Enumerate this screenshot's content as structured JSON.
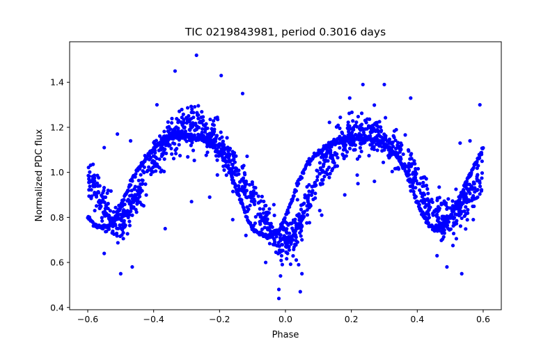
{
  "chart_data": {
    "type": "scatter",
    "title": "TIC 0219843981, period 0.3016 days",
    "xlabel": "Phase",
    "ylabel": "Normalized PDC flux",
    "xlim": [
      -0.655,
      0.655
    ],
    "ylim": [
      0.39,
      1.58
    ],
    "xticks": [
      -0.6,
      -0.4,
      -0.2,
      0.0,
      0.2,
      0.4,
      0.6
    ],
    "xtick_labels": [
      "−0.6",
      "−0.4",
      "−0.2",
      "0.0",
      "0.2",
      "0.4",
      "0.6"
    ],
    "yticks": [
      0.4,
      0.6,
      0.8,
      1.0,
      1.2,
      1.4
    ],
    "ytick_labels": [
      "0.4",
      "0.6",
      "0.8",
      "1.0",
      "1.2",
      "1.4"
    ],
    "grid": false,
    "marker_color": "#0000ff",
    "series": [
      {
        "description_source": "smooth model-like sequence (dense points)",
        "x": [
          -0.6,
          -0.58,
          -0.56,
          -0.54,
          -0.52,
          -0.5,
          -0.48,
          -0.46,
          -0.44,
          -0.42,
          -0.4,
          -0.38,
          -0.36,
          -0.34,
          -0.32,
          -0.3,
          -0.28,
          -0.26,
          -0.24,
          -0.22,
          -0.2,
          -0.18,
          -0.16,
          -0.14,
          -0.12,
          -0.1,
          -0.08,
          -0.06,
          -0.04,
          -0.02,
          0.0,
          0.02,
          0.04,
          0.06,
          0.08,
          0.1,
          0.12,
          0.14,
          0.16,
          0.18,
          0.2,
          0.22,
          0.24,
          0.26,
          0.28,
          0.3,
          0.32,
          0.34,
          0.36,
          0.38,
          0.4,
          0.42,
          0.44,
          0.46,
          0.48,
          0.5,
          0.52,
          0.54,
          0.56,
          0.58,
          0.6
        ],
        "y": [
          0.8,
          0.77,
          0.755,
          0.76,
          0.79,
          0.85,
          0.92,
          0.98,
          1.03,
          1.07,
          1.1,
          1.13,
          1.15,
          1.16,
          1.16,
          1.16,
          1.155,
          1.15,
          1.14,
          1.12,
          1.09,
          1.04,
          0.97,
          0.89,
          0.81,
          0.75,
          0.73,
          0.72,
          0.72,
          0.74,
          0.8,
          0.88,
          0.96,
          1.02,
          1.06,
          1.09,
          1.11,
          1.13,
          1.14,
          1.15,
          1.155,
          1.155,
          1.15,
          1.15,
          1.14,
          1.12,
          1.1,
          1.07,
          1.02,
          0.95,
          0.87,
          0.8,
          0.76,
          0.75,
          0.76,
          0.8,
          0.86,
          0.93,
          0.99,
          1.05,
          1.11
        ]
      },
      {
        "description_source": "noisy observed data (broad scatter)",
        "x": [
          -0.6,
          -0.58,
          -0.56,
          -0.54,
          -0.52,
          -0.5,
          -0.48,
          -0.46,
          -0.44,
          -0.42,
          -0.4,
          -0.38,
          -0.36,
          -0.34,
          -0.32,
          -0.3,
          -0.28,
          -0.26,
          -0.24,
          -0.22,
          -0.2,
          -0.18,
          -0.16,
          -0.14,
          -0.12,
          -0.1,
          -0.08,
          -0.06,
          -0.04,
          -0.02,
          0.0,
          0.02,
          0.04,
          0.06,
          0.08,
          0.1,
          0.12,
          0.14,
          0.16,
          0.18,
          0.2,
          0.22,
          0.24,
          0.26,
          0.28,
          0.3,
          0.32,
          0.34,
          0.36,
          0.38,
          0.4,
          0.42,
          0.44,
          0.46,
          0.48,
          0.5,
          0.52,
          0.54,
          0.56,
          0.58,
          0.6
        ],
        "y": [
          0.98,
          0.93,
          0.87,
          0.82,
          0.79,
          0.78,
          0.8,
          0.86,
          0.93,
          0.99,
          1.05,
          1.1,
          1.14,
          1.17,
          1.19,
          1.2,
          1.2,
          1.19,
          1.17,
          1.15,
          1.12,
          1.08,
          1.03,
          0.98,
          0.93,
          0.88,
          0.83,
          0.78,
          0.74,
          0.71,
          0.7,
          0.72,
          0.76,
          0.83,
          0.9,
          0.97,
          1.03,
          1.08,
          1.11,
          1.14,
          1.16,
          1.17,
          1.17,
          1.17,
          1.16,
          1.15,
          1.13,
          1.1,
          1.06,
          1.01,
          0.96,
          0.9,
          0.85,
          0.81,
          0.79,
          0.8,
          0.82,
          0.86,
          0.9,
          0.95,
          0.98
        ],
        "scatter_sigma": 0.045
      }
    ],
    "outliers": [
      {
        "x": -0.27,
        "y": 1.52
      },
      {
        "x": -0.335,
        "y": 1.45
      },
      {
        "x": -0.195,
        "y": 1.43
      },
      {
        "x": -0.13,
        "y": 1.35
      },
      {
        "x": 0.3,
        "y": 1.39
      },
      {
        "x": 0.235,
        "y": 1.39
      },
      {
        "x": 0.195,
        "y": 1.33
      },
      {
        "x": 0.38,
        "y": 1.33
      },
      {
        "x": 0.59,
        "y": 1.3
      },
      {
        "x": -0.39,
        "y": 1.3
      },
      {
        "x": -0.51,
        "y": 1.17
      },
      {
        "x": -0.47,
        "y": 1.14
      },
      {
        "x": -0.55,
        "y": 1.11
      },
      {
        "x": 0.53,
        "y": 1.13
      },
      {
        "x": 0.56,
        "y": 1.14
      },
      {
        "x": -0.5,
        "y": 0.55
      },
      {
        "x": -0.465,
        "y": 0.58
      },
      {
        "x": -0.02,
        "y": 0.44
      },
      {
        "x": -0.02,
        "y": 0.48
      },
      {
        "x": 0.045,
        "y": 0.47
      },
      {
        "x": 0.04,
        "y": 0.59
      },
      {
        "x": -0.015,
        "y": 0.54
      },
      {
        "x": 0.535,
        "y": 0.55
      },
      {
        "x": 0.49,
        "y": 0.58
      },
      {
        "x": 0.46,
        "y": 0.63
      },
      {
        "x": -0.55,
        "y": 0.64
      },
      {
        "x": -0.285,
        "y": 0.87
      },
      {
        "x": -0.23,
        "y": 0.89
      },
      {
        "x": -0.16,
        "y": 0.79
      },
      {
        "x": -0.05,
        "y": 0.82
      },
      {
        "x": 0.18,
        "y": 0.9
      },
      {
        "x": 0.22,
        "y": 0.95
      },
      {
        "x": 0.27,
        "y": 0.96
      },
      {
        "x": 0.11,
        "y": 0.81
      },
      {
        "x": -0.365,
        "y": 0.75
      },
      {
        "x": -0.06,
        "y": 0.6
      },
      {
        "x": 0.05,
        "y": 0.55
      },
      {
        "x": -0.12,
        "y": 0.72
      },
      {
        "x": 0.47,
        "y": 0.74
      },
      {
        "x": 0.57,
        "y": 0.79
      }
    ]
  }
}
